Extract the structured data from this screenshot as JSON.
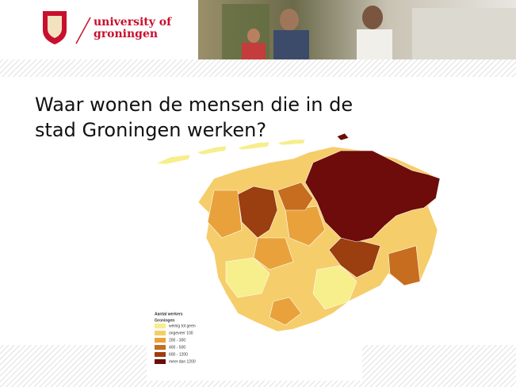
{
  "header": {
    "logo_line1": "university of",
    "logo_line2": "groningen"
  },
  "title": "Waar wonen de mensen die in de stad Groningen werken?",
  "legend": {
    "title": "Aantal werkers",
    "subtitle": "Groningen",
    "entries": [
      {
        "label": "weinig tot geen",
        "color": "#f7ee8c"
      },
      {
        "label": "ongeveer 100",
        "color": "#f5cd6a"
      },
      {
        "label": "200 - 300",
        "color": "#e9a23b"
      },
      {
        "label": "400 - 500",
        "color": "#c66d1f"
      },
      {
        "label": "600 - 1200",
        "color": "#9b3e10"
      },
      {
        "label": "meer dan 1200",
        "color": "#6d0c0a"
      }
    ]
  }
}
